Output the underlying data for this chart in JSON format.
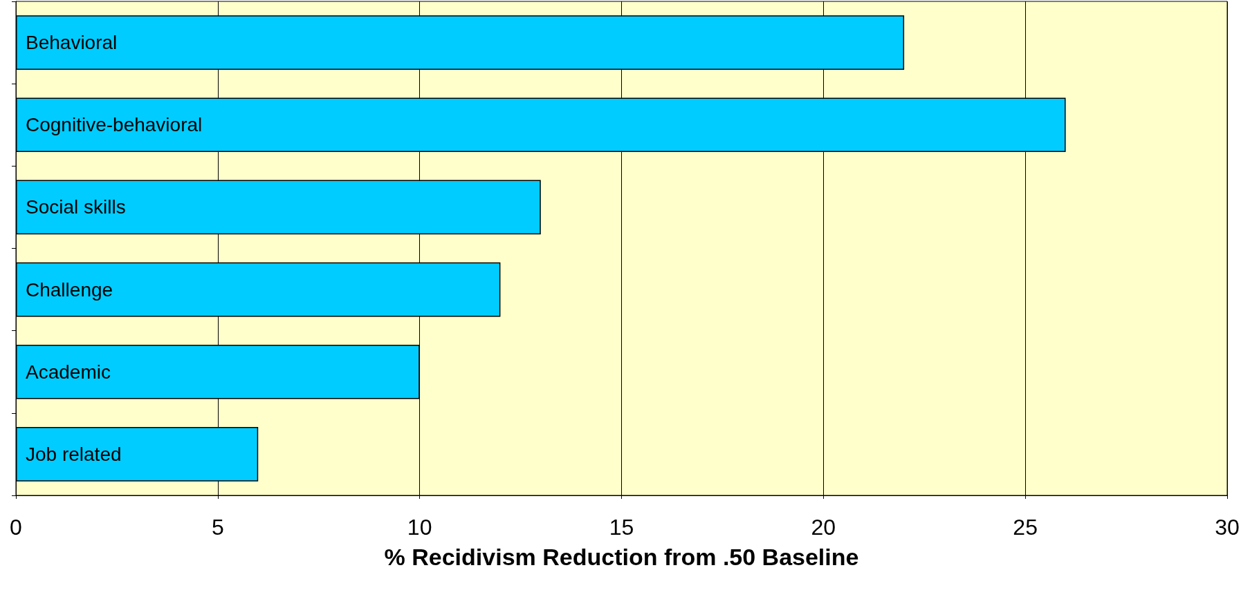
{
  "chart_data": {
    "type": "bar",
    "orientation": "horizontal",
    "categories": [
      "Behavioral",
      "Cognitive-behavioral",
      "Social skills",
      "Challenge",
      "Academic",
      "Job related"
    ],
    "values": [
      22,
      26,
      13,
      12,
      10,
      6
    ],
    "color": "#00ccff",
    "xlabel": "% Recidivism Reduction from .50 Baseline",
    "xlim": [
      0,
      30
    ],
    "xticks": [
      0,
      5,
      10,
      15,
      20,
      25,
      30
    ],
    "grid": "x"
  }
}
